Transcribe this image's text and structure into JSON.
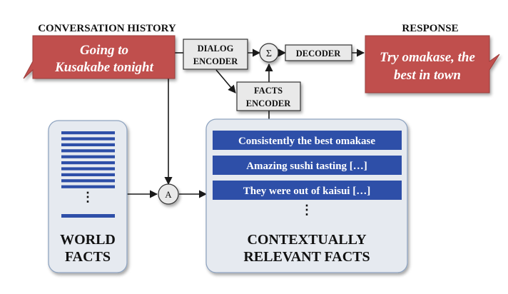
{
  "headers": {
    "history": "CONVERSATION HISTORY",
    "response": "RESPONSE"
  },
  "history_bubble": {
    "line1": "Going to",
    "line2": "Kusakabe tonight",
    "color": "#c0504d"
  },
  "response_bubble": {
    "line1": "Try omakase, the",
    "line2": "best in town",
    "color": "#c0504d"
  },
  "dialog_encoder": {
    "line1": "DIALOG",
    "line2": "ENCODER"
  },
  "facts_encoder": {
    "line1": "FACTS",
    "line2": "ENCODER"
  },
  "decoder": {
    "label": "DECODER"
  },
  "sum_node": {
    "symbol": "Σ"
  },
  "attention_node": {
    "symbol": "A"
  },
  "world_facts": {
    "line1": "WORLD",
    "line2": "FACTS",
    "ellipsis": "⋮"
  },
  "relevant_facts": {
    "line1": "CONTEXTUALLY",
    "line2": "RELEVANT FACTS",
    "items": [
      "Consistently the best omakase",
      "Amazing sushi tasting […]",
      "They were out of kaisui […]"
    ],
    "ellipsis": "⋮"
  },
  "colors": {
    "fact_blue": "#2e4fa8",
    "panel_fill": "#e6eaf0",
    "panel_border": "#8fa4c0",
    "box_fill": "#e9e9e9"
  }
}
